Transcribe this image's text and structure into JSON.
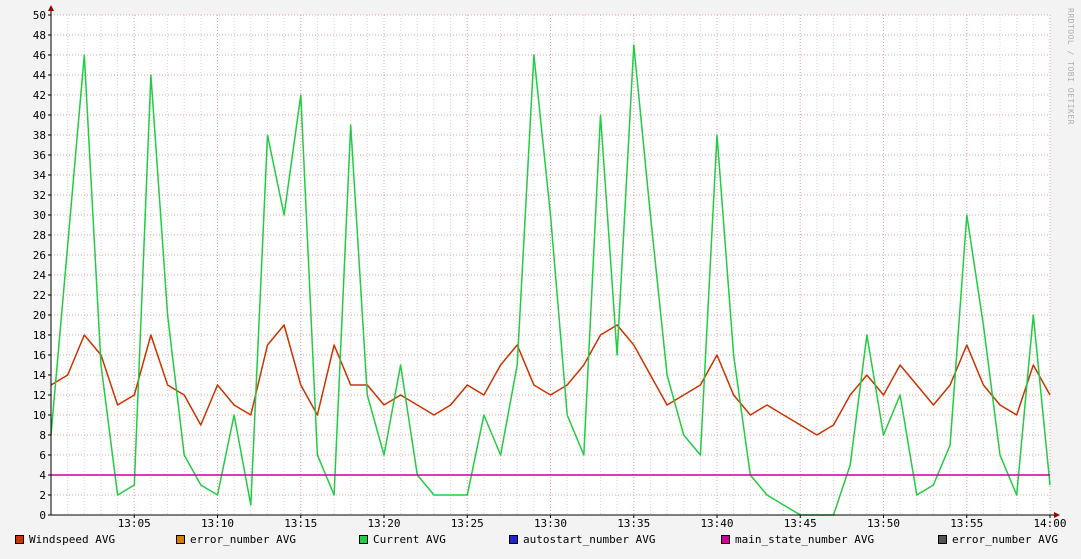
{
  "watermark": "RRDTOOL / TOBI OETIKER",
  "legend": [
    {
      "label": "Windspeed AVG",
      "color": "#cc3300"
    },
    {
      "label": "error_number AVG",
      "color": "#d97a00"
    },
    {
      "label": "Current AVG",
      "color": "#22cc44"
    },
    {
      "label": "autostart_number AVG",
      "color": "#2222cc"
    },
    {
      "label": "main_state_number AVG",
      "color": "#cc0099"
    },
    {
      "label": "error_number AVG",
      "color": "#555555"
    }
  ],
  "chart_data": {
    "type": "line",
    "title": "",
    "xlabel": "",
    "ylabel": "",
    "xlim": [
      "13:00",
      "14:00"
    ],
    "ylim": [
      0,
      50
    ],
    "x_ticks": [
      "13:05",
      "13:10",
      "13:15",
      "13:20",
      "13:25",
      "13:30",
      "13:35",
      "13:40",
      "13:45",
      "13:50",
      "13:55",
      "14:00"
    ],
    "y_ticks": [
      0,
      2,
      4,
      6,
      8,
      10,
      12,
      14,
      16,
      18,
      20,
      22,
      24,
      26,
      28,
      30,
      32,
      34,
      36,
      38,
      40,
      42,
      44,
      46,
      48,
      50
    ],
    "grid": true,
    "legend_position": "bottom",
    "x": [
      "13:00",
      "13:01",
      "13:02",
      "13:03",
      "13:04",
      "13:05",
      "13:06",
      "13:07",
      "13:08",
      "13:09",
      "13:10",
      "13:11",
      "13:12",
      "13:13",
      "13:14",
      "13:15",
      "13:16",
      "13:17",
      "13:18",
      "13:19",
      "13:20",
      "13:21",
      "13:22",
      "13:23",
      "13:24",
      "13:25",
      "13:26",
      "13:27",
      "13:28",
      "13:29",
      "13:30",
      "13:31",
      "13:32",
      "13:33",
      "13:34",
      "13:35",
      "13:36",
      "13:37",
      "13:38",
      "13:39",
      "13:40",
      "13:41",
      "13:42",
      "13:43",
      "13:44",
      "13:45",
      "13:46",
      "13:47",
      "13:48",
      "13:49",
      "13:50",
      "13:51",
      "13:52",
      "13:53",
      "13:54",
      "13:55",
      "13:56",
      "13:57",
      "13:58",
      "13:59",
      "14:00"
    ],
    "series": [
      {
        "name": "Windspeed AVG",
        "color": "#cc3300",
        "values": [
          13,
          14,
          18,
          16,
          11,
          12,
          18,
          13,
          12,
          9,
          13,
          11,
          10,
          17,
          19,
          13,
          10,
          17,
          13,
          13,
          11,
          12,
          11,
          10,
          11,
          13,
          12,
          15,
          17,
          13,
          12,
          13,
          15,
          18,
          19,
          17,
          14,
          11,
          12,
          13,
          16,
          12,
          10,
          11,
          10,
          9,
          8,
          9,
          12,
          14,
          12,
          15,
          13,
          11,
          13,
          17,
          13,
          11,
          10,
          15,
          12
        ]
      },
      {
        "name": "Current AVG",
        "color": "#22cc44",
        "values": [
          8,
          27,
          46,
          15,
          2,
          3,
          44,
          20,
          6,
          3,
          2,
          10,
          1,
          38,
          30,
          42,
          6,
          2,
          39,
          12,
          6,
          15,
          4,
          2,
          2,
          2,
          10,
          6,
          15,
          46,
          30,
          10,
          6,
          40,
          16,
          47,
          30,
          14,
          8,
          6,
          38,
          16,
          4,
          2,
          1,
          0,
          0,
          0,
          5,
          18,
          8,
          12,
          2,
          3,
          7,
          30,
          19,
          6,
          2,
          20,
          3
        ]
      },
      {
        "name": "main_state_number AVG",
        "color": "#cc0099",
        "values": [
          4,
          4,
          4,
          4,
          4,
          4,
          4,
          4,
          4,
          4,
          4,
          4,
          4,
          4,
          4,
          4,
          4,
          4,
          4,
          4,
          4,
          4,
          4,
          4,
          4,
          4,
          4,
          4,
          4,
          4,
          4,
          4,
          4,
          4,
          4,
          4,
          4,
          4,
          4,
          4,
          4,
          4,
          4,
          4,
          4,
          4,
          4,
          4,
          4,
          4,
          4,
          4,
          4,
          4,
          4,
          4,
          4,
          4,
          4,
          4,
          4
        ]
      }
    ]
  }
}
